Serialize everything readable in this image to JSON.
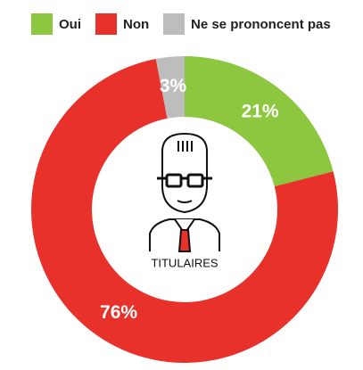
{
  "chart_data": {
    "type": "donut",
    "categories": [
      "Oui",
      "Non",
      "Ne se prononcent pas"
    ],
    "series": [
      {
        "values": [
          21,
          76,
          3
        ],
        "value_labels": [
          "21%",
          "76%",
          "3%"
        ],
        "colors": [
          "#8dc63f",
          "#e8312a",
          "#bdbdbd"
        ]
      }
    ],
    "center_label": "TITULAIRES"
  }
}
